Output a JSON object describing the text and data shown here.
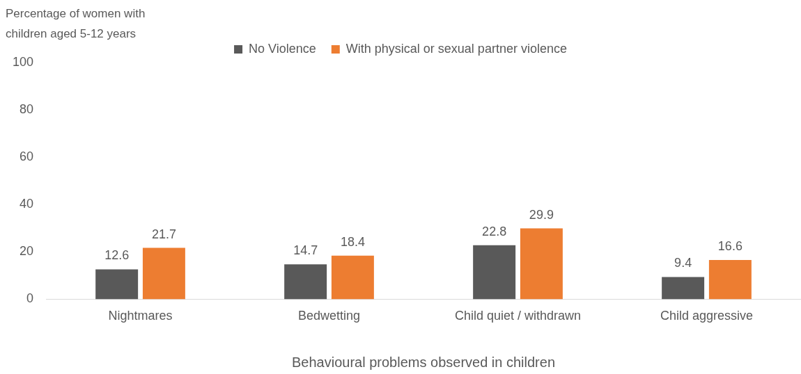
{
  "chart_data": {
    "type": "bar",
    "ylabel": "Percentage of women with children aged 5-12 years",
    "xlabel": "Behavioural problems observed in children",
    "categories": [
      "Nightmares",
      "Bedwetting",
      "Child quiet / withdrawn",
      "Child aggressive"
    ],
    "series": [
      {
        "name": "No Violence",
        "color": "#595959",
        "values": [
          12.6,
          14.7,
          22.8,
          9.4
        ]
      },
      {
        "name": "With physical or sexual partner violence",
        "color": "#ed7d31",
        "values": [
          21.7,
          18.4,
          29.9,
          16.6
        ]
      }
    ],
    "ylim": [
      0,
      100
    ],
    "yticks": [
      0,
      20,
      40,
      60,
      80,
      100
    ],
    "grid": false,
    "legend": "top",
    "data_labels": true
  }
}
